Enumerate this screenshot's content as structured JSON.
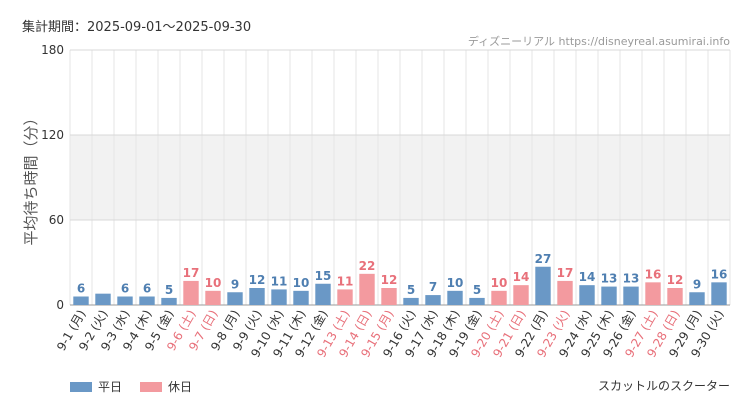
{
  "header": {
    "period": "集計期間：2025-09-01～2025-09-30",
    "source": "ディズニーリアル https://disneyreal.asumirai.info"
  },
  "footer": {
    "attraction": "スカットルのスクーター"
  },
  "colors": {
    "weekday": "#6a98c6",
    "holiday": "#f39a9f"
  },
  "chart_data": {
    "type": "bar",
    "ylabel": "平均待ち時間（分）",
    "ylim": [
      0,
      180
    ],
    "yticks": [
      0,
      60,
      120,
      180
    ],
    "categories": [
      "9-1 (月)",
      "9-2 (火)",
      "9-3 (水)",
      "9-4 (木)",
      "9-5 (金)",
      "9-6 (土)",
      "9-7 (日)",
      "9-8 (月)",
      "9-9 (火)",
      "9-10 (水)",
      "9-11 (木)",
      "9-12 (金)",
      "9-13 (土)",
      "9-14 (日)",
      "9-15 (月)",
      "9-16 (火)",
      "9-17 (水)",
      "9-18 (木)",
      "9-19 (金)",
      "9-20 (土)",
      "9-21 (日)",
      "9-22 (月)",
      "9-23 (火)",
      "9-24 (水)",
      "9-25 (木)",
      "9-26 (金)",
      "9-27 (土)",
      "9-28 (日)",
      "9-29 (月)",
      "9-30 (火)"
    ],
    "values": [
      6,
      8,
      6,
      6,
      5,
      17,
      10,
      9,
      12,
      11,
      10,
      15,
      11,
      22,
      12,
      5,
      7,
      10,
      5,
      10,
      14,
      27,
      17,
      14,
      13,
      13,
      16,
      12,
      9,
      16
    ],
    "data_labels": [
      "6",
      "",
      "6",
      "6",
      "5",
      "17",
      "10",
      "9",
      "12",
      "11",
      "10",
      "15",
      "11",
      "22",
      "12",
      "5",
      "7",
      "10",
      "5",
      "10",
      "14",
      "27",
      "17",
      "14",
      "13",
      "13",
      "16",
      "12",
      "9",
      "16"
    ],
    "day_type": [
      "weekday",
      "weekday",
      "weekday",
      "weekday",
      "weekday",
      "holiday",
      "holiday",
      "weekday",
      "weekday",
      "weekday",
      "weekday",
      "weekday",
      "holiday",
      "holiday",
      "holiday",
      "weekday",
      "weekday",
      "weekday",
      "weekday",
      "holiday",
      "holiday",
      "weekday",
      "holiday",
      "weekday",
      "weekday",
      "weekday",
      "holiday",
      "holiday",
      "weekday",
      "weekday"
    ],
    "legend": [
      {
        "key": "weekday",
        "label": "平日"
      },
      {
        "key": "holiday",
        "label": "休日"
      }
    ]
  }
}
